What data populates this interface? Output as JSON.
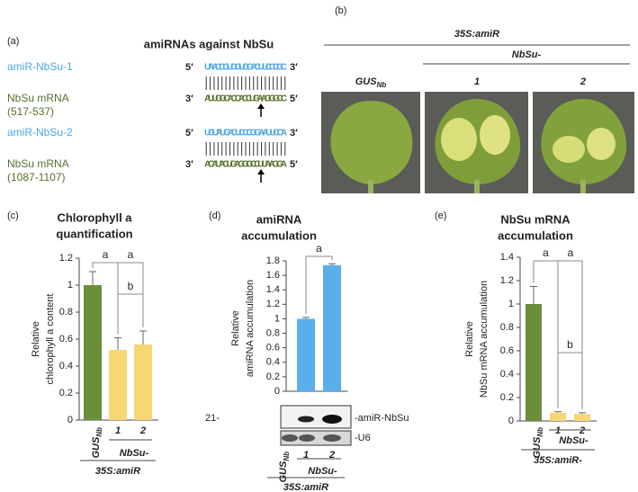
{
  "panel_a": {
    "label": "(a)",
    "title": "amiRNAs against NbSu",
    "five_prime": "5′",
    "three_prime": "3′",
    "pairs": [
      {
        "name": "amiR-NbSu-1",
        "amir_seq": "UAACCGUGGUGGACUUCCCGC",
        "target_name": "NbSu mRNA",
        "target_range": "(517-537)",
        "target_seq": "AUUGGCACCACCUGAAGGGCC"
      },
      {
        "name": "amiR-NbSu-2",
        "amir_seq": "UGUAUGACUCCCGGAAUUCCA",
        "target_name": "NbSu mRNA",
        "target_range": "(1087-1107)",
        "target_seq": "ACAUACUGAGGGCCUUAAGGA"
      }
    ]
  },
  "panel_b": {
    "label": "(b)",
    "construct": "35S:amiR",
    "group": "NbSu-",
    "samples": [
      "GUS",
      "1",
      "2"
    ],
    "sample_subscripts": [
      "Nb",
      null,
      null
    ]
  },
  "blot": {
    "size_marker": "21-",
    "bands": [
      "-amiR-NbSu",
      "-U6"
    ]
  },
  "chart_data": [
    {
      "type": "bar",
      "panel_label": "(c)",
      "title": [
        "Chlorophyll a",
        "quantification"
      ],
      "ylabel": [
        "Relative",
        "chlorophyll a content"
      ],
      "categories": [
        "GUS",
        "1",
        "2"
      ],
      "category_subscripts": [
        "Nb",
        null,
        null
      ],
      "values": [
        1.0,
        0.52,
        0.56
      ],
      "errors": [
        0.1,
        0.09,
        0.1
      ],
      "colors": [
        "#6b8e3a",
        "#f7d774",
        "#f7d774"
      ],
      "ylim": [
        0,
        1.2
      ],
      "yticks": [
        0,
        0.2,
        0.4,
        0.6,
        0.8,
        1,
        1.2
      ],
      "annotations": [
        "a",
        "a",
        "b"
      ],
      "group_label": "NbSu-",
      "footer": "35S:amiR"
    },
    {
      "type": "bar",
      "panel_label": "(d)",
      "title": [
        "amiRNA",
        "accumulation"
      ],
      "ylabel": [
        "Relative",
        "amiRNA accumulation"
      ],
      "categories": [
        "GUS",
        "1",
        "2"
      ],
      "category_subscripts": [
        "Nb",
        null,
        null
      ],
      "values": [
        0,
        1.0,
        1.74
      ],
      "errors": [
        null,
        0.02,
        0.02
      ],
      "colors": [
        "#5aaeea",
        "#5aaeea",
        "#5aaeea"
      ],
      "ylim": [
        0,
        1.8
      ],
      "yticks": [
        0,
        0.2,
        0.4,
        0.6,
        0.8,
        1,
        1.2,
        1.4,
        1.6,
        1.8
      ],
      "annotations": [
        "a"
      ],
      "group_label": "NbSu-",
      "footer": "35S:amiR"
    },
    {
      "type": "bar",
      "panel_label": "(e)",
      "title": [
        "NbSu mRNA",
        "accumulation"
      ],
      "ylabel": [
        "Relative",
        "NbSu mRNA accumulation"
      ],
      "categories": [
        "GUS",
        "1",
        "2"
      ],
      "category_subscripts": [
        "Nb",
        null,
        null
      ],
      "values": [
        1.0,
        0.07,
        0.06
      ],
      "errors": [
        0.15,
        0.01,
        0.01
      ],
      "colors": [
        "#6b8e3a",
        "#f7d774",
        "#f7d774"
      ],
      "ylim": [
        0,
        1.4
      ],
      "yticks": [
        0,
        0.2,
        0.4,
        0.6,
        0.8,
        1,
        1.2,
        1.4
      ],
      "annotations": [
        "a",
        "a",
        "b"
      ],
      "group_label": "NbSu-",
      "footer": "35S:amiR-"
    }
  ]
}
